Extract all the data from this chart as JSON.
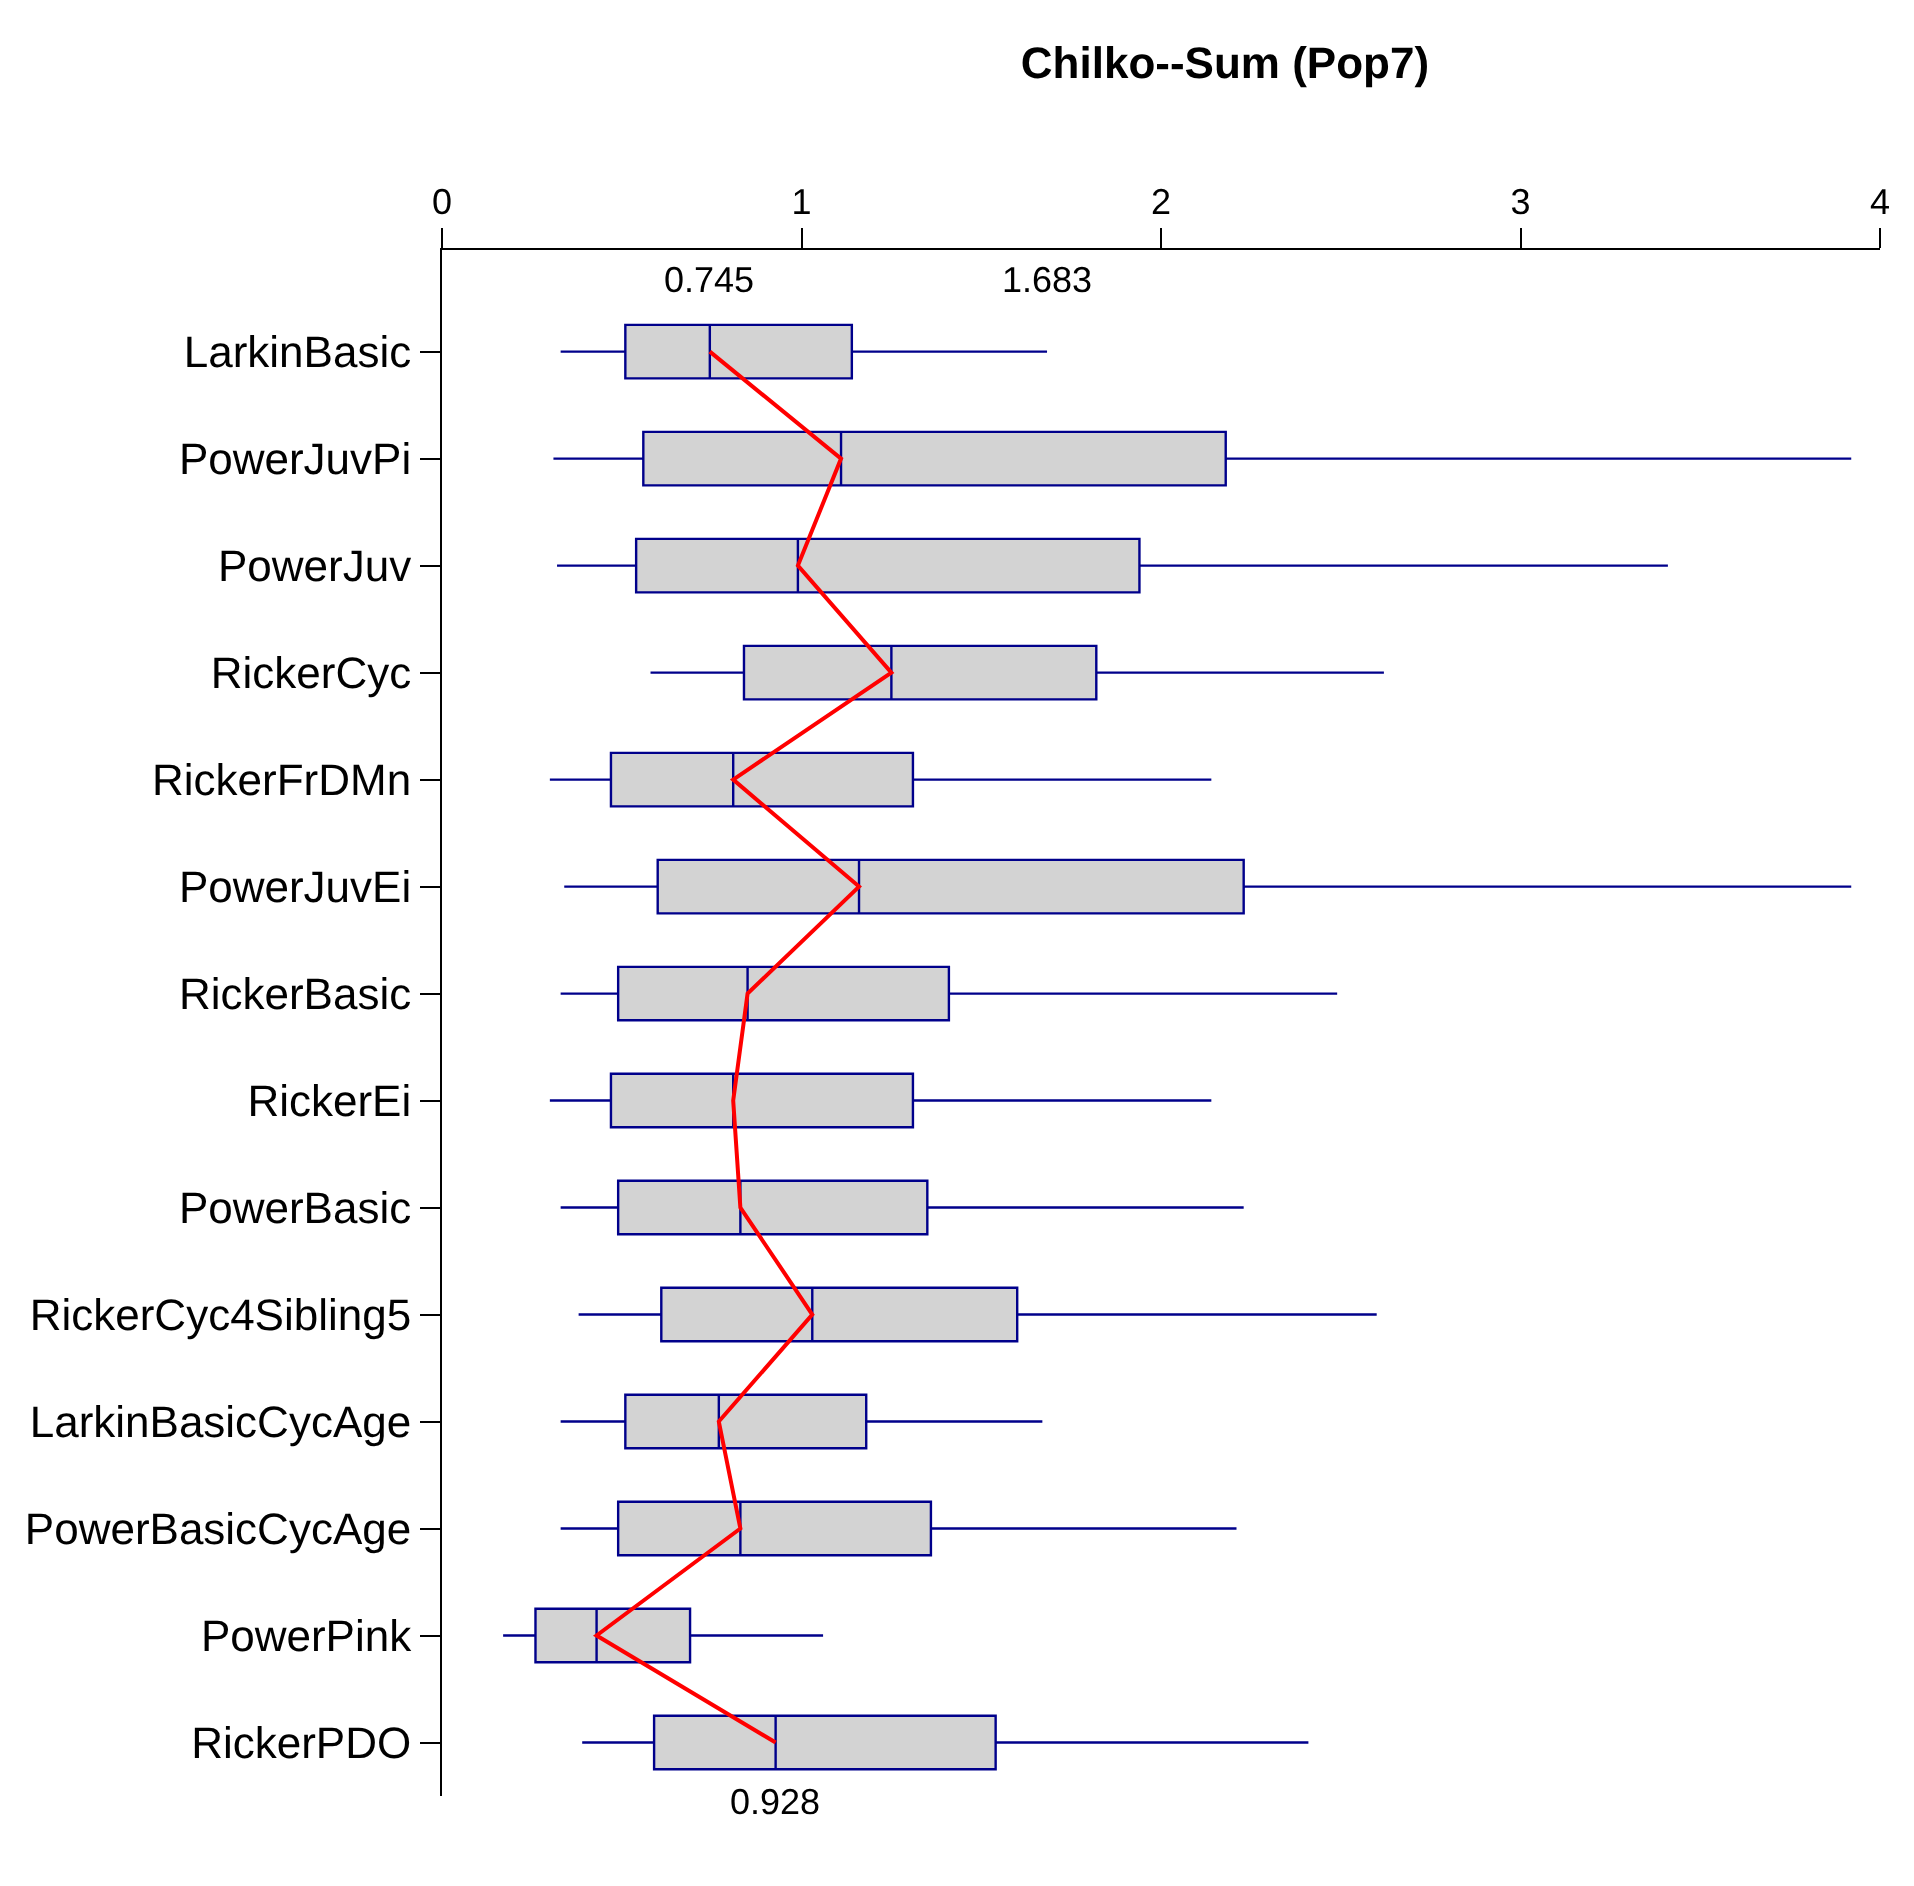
{
  "chart_data": {
    "type": "box",
    "title": "Chilko--Sum (Pop7)",
    "orientation": "horizontal",
    "categories": [
      "LarkinBasic",
      "PowerJuvPi",
      "PowerJuv",
      "RickerCyc",
      "RickerFrDMn",
      "PowerJuvEi",
      "RickerBasic",
      "RickerEi",
      "PowerBasic",
      "RickerCyc4Sibling5",
      "LarkinBasicCycAge",
      "PowerBasicCycAge",
      "PowerPink",
      "RickerPDO"
    ],
    "xlim": [
      0,
      4
    ],
    "xticks": [
      0,
      1,
      2,
      3,
      4
    ],
    "grid": false,
    "series": [
      {
        "color": "#00008b",
        "boxes": [
          {
            "low": 0.33,
            "q1": 0.51,
            "median": 0.745,
            "q3": 1.14,
            "high": 1.683
          },
          {
            "low": 0.31,
            "q1": 0.56,
            "median": 1.11,
            "q3": 2.18,
            "high": 3.92
          },
          {
            "low": 0.32,
            "q1": 0.54,
            "median": 0.99,
            "q3": 1.94,
            "high": 3.41
          },
          {
            "low": 0.58,
            "q1": 0.84,
            "median": 1.25,
            "q3": 1.82,
            "high": 2.62
          },
          {
            "low": 0.3,
            "q1": 0.47,
            "median": 0.81,
            "q3": 1.31,
            "high": 2.14
          },
          {
            "low": 0.34,
            "q1": 0.6,
            "median": 1.16,
            "q3": 2.23,
            "high": 3.92
          },
          {
            "low": 0.33,
            "q1": 0.49,
            "median": 0.85,
            "q3": 1.41,
            "high": 2.49
          },
          {
            "low": 0.3,
            "q1": 0.47,
            "median": 0.81,
            "q3": 1.31,
            "high": 2.14
          },
          {
            "low": 0.33,
            "q1": 0.49,
            "median": 0.83,
            "q3": 1.35,
            "high": 2.23
          },
          {
            "low": 0.38,
            "q1": 0.61,
            "median": 1.03,
            "q3": 1.6,
            "high": 2.6
          },
          {
            "low": 0.33,
            "q1": 0.51,
            "median": 0.77,
            "q3": 1.18,
            "high": 1.67
          },
          {
            "low": 0.33,
            "q1": 0.49,
            "median": 0.83,
            "q3": 1.36,
            "high": 2.21
          },
          {
            "low": 0.17,
            "q1": 0.26,
            "median": 0.43,
            "q3": 0.69,
            "high": 1.06
          },
          {
            "low": 0.39,
            "q1": 0.59,
            "median": 0.928,
            "q3": 1.54,
            "high": 2.41
          }
        ]
      },
      {
        "type": "line",
        "color": "#ff0000",
        "values": [
          0.745,
          1.11,
          0.99,
          1.25,
          0.81,
          1.16,
          0.85,
          0.81,
          0.83,
          1.03,
          0.77,
          0.83,
          0.43,
          0.928
        ]
      }
    ],
    "annotations": [
      {
        "text": "0.745",
        "x": 0.745,
        "y": "LarkinBasic"
      },
      {
        "text": "1.683",
        "x": 1.683,
        "y": "LarkinBasic"
      },
      {
        "text": "0.928",
        "x": 0.928,
        "y": "RickerPDO"
      }
    ]
  }
}
